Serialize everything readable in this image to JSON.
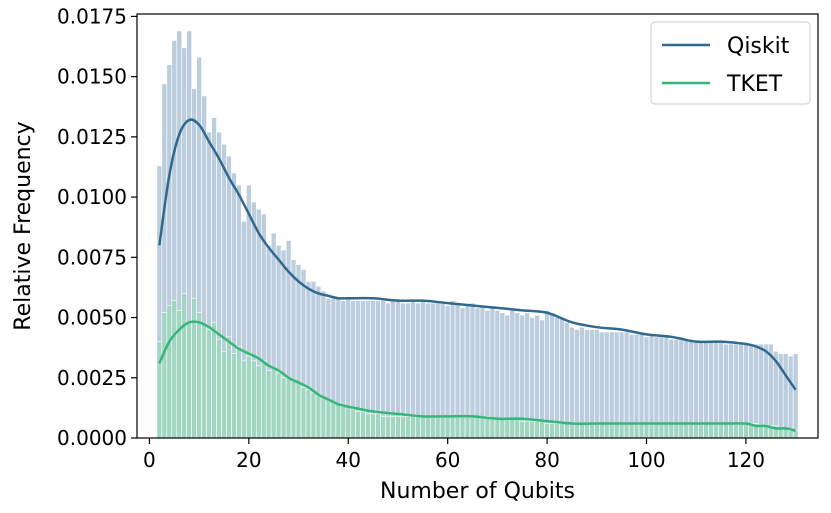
{
  "chart_data": {
    "type": "bar",
    "xlabel": "Number of Qubits",
    "ylabel": "Relative Frequency",
    "xlim": [
      -2.5,
      134.5
    ],
    "ylim": [
      0,
      0.0176
    ],
    "xticks": [
      0,
      20,
      40,
      60,
      80,
      100,
      120
    ],
    "xtick_labels": [
      "0",
      "20",
      "40",
      "60",
      "80",
      "100",
      "120"
    ],
    "yticks": [
      0,
      0.0025,
      0.005,
      0.0075,
      0.01,
      0.0125,
      0.015,
      0.0175
    ],
    "ytick_labels": [
      "0.0000",
      "0.0025",
      "0.0050",
      "0.0075",
      "0.0100",
      "0.0125",
      "0.0150",
      "0.0175"
    ],
    "legend_position": "top-right",
    "colors": {
      "qiskit": "#31688e",
      "tket": "#35b779",
      "qiskit_hist": "#b8cbdb",
      "tket_hist": "#9ed7bd"
    },
    "series": [
      {
        "name": "Qiskit",
        "hist_x": [
          2,
          3,
          4,
          5,
          6,
          7,
          8,
          9,
          10,
          11,
          12,
          13,
          14,
          15,
          16,
          17,
          18,
          19,
          20,
          21,
          22,
          23,
          24,
          25,
          26,
          27,
          28,
          29,
          30,
          31,
          32,
          33,
          34,
          35,
          36,
          37,
          38,
          39,
          40,
          41,
          42,
          43,
          44,
          45,
          46,
          47,
          48,
          49,
          50,
          51,
          52,
          53,
          54,
          55,
          56,
          57,
          58,
          59,
          60,
          61,
          62,
          63,
          64,
          65,
          66,
          67,
          68,
          69,
          70,
          71,
          72,
          73,
          74,
          75,
          76,
          77,
          78,
          79,
          80,
          81,
          82,
          83,
          84,
          85,
          86,
          87,
          88,
          89,
          90,
          91,
          92,
          93,
          94,
          95,
          96,
          97,
          98,
          99,
          100,
          101,
          102,
          103,
          104,
          105,
          106,
          107,
          108,
          109,
          110,
          111,
          112,
          113,
          114,
          115,
          116,
          117,
          118,
          119,
          120,
          121,
          122,
          123,
          124,
          125,
          126,
          127,
          128,
          129,
          130
        ],
        "hist_values": [
          0.0113,
          0.0147,
          0.0155,
          0.0165,
          0.0169,
          0.0162,
          0.0169,
          0.0145,
          0.0158,
          0.0142,
          0.0127,
          0.0133,
          0.0127,
          0.0122,
          0.0117,
          0.011,
          0.0105,
          0.009,
          0.0105,
          0.0098,
          0.0095,
          0.0093,
          0.008,
          0.0085,
          0.008,
          0.0078,
          0.0082,
          0.0074,
          0.0072,
          0.007,
          0.0065,
          0.0065,
          0.0063,
          0.0061,
          0.0058,
          0.0058,
          0.0058,
          0.0057,
          0.0058,
          0.0057,
          0.0057,
          0.0057,
          0.0057,
          0.0057,
          0.0057,
          0.0057,
          0.0056,
          0.0057,
          0.0057,
          0.0056,
          0.0056,
          0.0057,
          0.0056,
          0.0057,
          0.0056,
          0.0056,
          0.0057,
          0.0056,
          0.0055,
          0.0057,
          0.0056,
          0.0054,
          0.0055,
          0.0056,
          0.0054,
          0.0055,
          0.0053,
          0.0054,
          0.0053,
          0.0052,
          0.0051,
          0.0053,
          0.0052,
          0.0051,
          0.0052,
          0.005,
          0.0051,
          0.0049,
          0.0053,
          0.0052,
          0.005,
          0.005,
          0.0048,
          0.0046,
          0.0045,
          0.0046,
          0.0045,
          0.0045,
          0.0045,
          0.0044,
          0.0044,
          0.0044,
          0.0044,
          0.0044,
          0.0044,
          0.0043,
          0.0043,
          0.0043,
          0.0042,
          0.0043,
          0.0042,
          0.0042,
          0.0042,
          0.0041,
          0.0041,
          0.0042,
          0.0041,
          0.004,
          0.004,
          0.004,
          0.004,
          0.004,
          0.004,
          0.004,
          0.0039,
          0.0039,
          0.0039,
          0.004,
          0.0039,
          0.0039,
          0.0039,
          0.0039,
          0.0039,
          0.0039,
          0.0036,
          0.0035,
          0.0035,
          0.0034,
          0.0035
        ],
        "kde_x": [
          2,
          4,
          6,
          8,
          10,
          12,
          14,
          16,
          18,
          20,
          22,
          24,
          26,
          28,
          30,
          32,
          34,
          36,
          38,
          40,
          45,
          50,
          55,
          60,
          65,
          70,
          75,
          80,
          85,
          90,
          95,
          100,
          105,
          110,
          115,
          120,
          122,
          124,
          126,
          128,
          130
        ],
        "kde_y": [
          0.008,
          0.0109,
          0.0126,
          0.0132,
          0.013,
          0.0123,
          0.0116,
          0.0108,
          0.0101,
          0.0093,
          0.0085,
          0.0079,
          0.0074,
          0.0069,
          0.0065,
          0.0062,
          0.006,
          0.0059,
          0.0058,
          0.0058,
          0.0058,
          0.0057,
          0.0057,
          0.0056,
          0.0055,
          0.0054,
          0.0053,
          0.0052,
          0.0048,
          0.0046,
          0.0045,
          0.0043,
          0.0042,
          0.004,
          0.004,
          0.0039,
          0.0038,
          0.0036,
          0.0032,
          0.0026,
          0.002
        ]
      },
      {
        "name": "TKET",
        "hist_x": [
          2,
          3,
          4,
          5,
          6,
          7,
          8,
          9,
          10,
          11,
          12,
          13,
          14,
          15,
          16,
          17,
          18,
          19,
          20,
          21,
          22,
          23,
          24,
          25,
          26,
          27,
          28,
          29,
          30,
          31,
          32,
          33,
          34,
          35,
          36,
          37,
          38,
          39,
          40,
          41,
          42,
          43,
          44,
          45,
          46,
          47,
          48,
          49,
          50,
          51,
          52,
          53,
          54,
          55,
          56,
          57,
          58,
          59,
          60,
          61,
          62,
          63,
          64,
          65,
          66,
          67,
          68,
          69,
          70,
          71,
          72,
          73,
          74,
          75,
          76,
          77,
          78,
          79,
          80,
          81,
          82,
          83,
          84,
          85,
          86,
          87,
          88,
          89,
          90,
          91,
          92,
          93,
          94,
          95,
          96,
          97,
          98,
          99,
          100,
          101,
          102,
          103,
          104,
          105,
          106,
          107,
          108,
          109,
          110,
          111,
          112,
          113,
          114,
          115,
          116,
          117,
          118,
          119,
          120,
          121,
          122,
          123,
          124,
          125,
          126,
          127,
          128,
          129,
          130
        ],
        "hist_values": [
          0.004,
          0.0052,
          0.0055,
          0.0057,
          0.0053,
          0.006,
          0.0048,
          0.0058,
          0.0052,
          0.0047,
          0.0045,
          0.0048,
          0.0041,
          0.0036,
          0.0042,
          0.0035,
          0.0038,
          0.0032,
          0.0034,
          0.0032,
          0.003,
          0.0032,
          0.0028,
          0.0029,
          0.0027,
          0.0025,
          0.0025,
          0.0024,
          0.0023,
          0.0021,
          0.002,
          0.0019,
          0.0018,
          0.0017,
          0.0016,
          0.0015,
          0.0014,
          0.0013,
          0.0013,
          0.0012,
          0.0011,
          0.0011,
          0.001,
          0.001,
          0.001,
          0.0009,
          0.0009,
          0.0009,
          0.0009,
          0.0009,
          0.0009,
          0.0009,
          0.0009,
          0.0009,
          0.0009,
          0.0009,
          0.0009,
          0.0009,
          0.0009,
          0.0009,
          0.0009,
          0.0009,
          0.0009,
          0.0009,
          0.0009,
          0.0009,
          0.0009,
          0.0008,
          0.0008,
          0.0008,
          0.0008,
          0.0008,
          0.0008,
          0.0007,
          0.0007,
          0.0007,
          0.0007,
          0.0007,
          0.0006,
          0.0006,
          0.0006,
          0.0006,
          0.0006,
          0.0006,
          0.0006,
          0.0006,
          0.0006,
          0.0006,
          0.0006,
          0.0006,
          0.0006,
          0.0006,
          0.0006,
          0.0006,
          0.0006,
          0.0006,
          0.0006,
          0.0006,
          0.0006,
          0.0006,
          0.0006,
          0.0006,
          0.0006,
          0.0006,
          0.0006,
          0.0006,
          0.0006,
          0.0006,
          0.0006,
          0.0006,
          0.0006,
          0.0006,
          0.0006,
          0.0006,
          0.0006,
          0.0006,
          0.0006,
          0.0006,
          0.0006,
          0.0006,
          0.0006,
          0.0005,
          0.0005,
          0.0005,
          0.0005,
          0.0004,
          0.0004,
          0.0003,
          0.0003
        ],
        "kde_x": [
          2,
          4,
          6,
          8,
          10,
          12,
          14,
          16,
          18,
          20,
          22,
          24,
          26,
          28,
          30,
          32,
          34,
          36,
          38,
          40,
          45,
          50,
          55,
          60,
          65,
          70,
          75,
          80,
          85,
          90,
          95,
          100,
          105,
          110,
          115,
          120,
          122,
          124,
          126,
          128,
          130
        ],
        "kde_y": [
          0.0031,
          0.004,
          0.0045,
          0.0048,
          0.0048,
          0.0046,
          0.0043,
          0.004,
          0.0037,
          0.0035,
          0.0033,
          0.003,
          0.0028,
          0.0025,
          0.0023,
          0.0021,
          0.0018,
          0.0016,
          0.0014,
          0.0013,
          0.0011,
          0.001,
          0.0009,
          0.0009,
          0.0009,
          0.0008,
          0.0008,
          0.0007,
          0.0006,
          0.0006,
          0.0006,
          0.0006,
          0.0006,
          0.0006,
          0.0006,
          0.0006,
          0.0005,
          0.0005,
          0.0004,
          0.0004,
          0.0003
        ]
      }
    ]
  }
}
